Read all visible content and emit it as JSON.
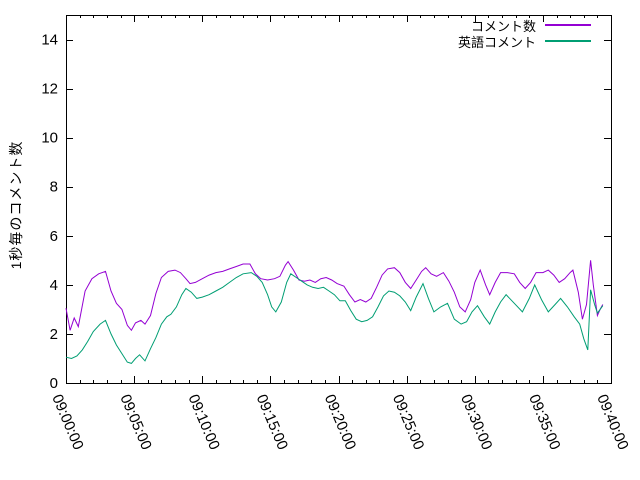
{
  "chart_data": {
    "type": "line",
    "title": "",
    "xlabel": "",
    "ylabel": "1秒毎のコメント数",
    "ylim": [
      0,
      15
    ],
    "yticks": [
      0,
      2,
      4,
      6,
      8,
      10,
      12,
      14
    ],
    "x_range_minutes": [
      0,
      40
    ],
    "x_major_tick_interval_minutes": 5,
    "x_minor_tick_interval_minutes": 1,
    "x_major_tick_labels": [
      "09:00:00",
      "09:05:00",
      "09:10:00",
      "09:15:00",
      "09:20:00",
      "09:25:00",
      "09:30:00",
      "09:35:00",
      "09:40:00"
    ],
    "grid": "off",
    "legend_position": "top-right-inside",
    "axis_color": "#000000",
    "background_color": "#ffffff",
    "series": [
      {
        "name": "コメント数",
        "color": "#9400D3",
        "points": [
          [
            0,
            3.05
          ],
          [
            0.3,
            2.15
          ],
          [
            0.6,
            2.65
          ],
          [
            0.9,
            2.3
          ],
          [
            1.4,
            3.75
          ],
          [
            1.9,
            4.25
          ],
          [
            2.4,
            4.45
          ],
          [
            2.9,
            4.55
          ],
          [
            3.3,
            3.75
          ],
          [
            3.7,
            3.25
          ],
          [
            4.1,
            3.0
          ],
          [
            4.5,
            2.35
          ],
          [
            4.8,
            2.15
          ],
          [
            5.1,
            2.45
          ],
          [
            5.5,
            2.55
          ],
          [
            5.8,
            2.4
          ],
          [
            6.2,
            2.75
          ],
          [
            6.6,
            3.65
          ],
          [
            7.0,
            4.3
          ],
          [
            7.5,
            4.55
          ],
          [
            8.0,
            4.6
          ],
          [
            8.4,
            4.5
          ],
          [
            8.8,
            4.25
          ],
          [
            9.1,
            4.05
          ],
          [
            9.5,
            4.1
          ],
          [
            10.0,
            4.25
          ],
          [
            10.5,
            4.4
          ],
          [
            11.0,
            4.5
          ],
          [
            11.5,
            4.55
          ],
          [
            12.0,
            4.65
          ],
          [
            12.5,
            4.75
          ],
          [
            13.0,
            4.85
          ],
          [
            13.5,
            4.85
          ],
          [
            13.9,
            4.45
          ],
          [
            14.3,
            4.25
          ],
          [
            14.8,
            4.2
          ],
          [
            15.3,
            4.25
          ],
          [
            15.7,
            4.35
          ],
          [
            16.1,
            4.8
          ],
          [
            16.3,
            4.95
          ],
          [
            16.7,
            4.6
          ],
          [
            17.1,
            4.2
          ],
          [
            17.5,
            4.15
          ],
          [
            17.9,
            4.2
          ],
          [
            18.3,
            4.1
          ],
          [
            18.7,
            4.25
          ],
          [
            19.1,
            4.3
          ],
          [
            19.5,
            4.2
          ],
          [
            19.9,
            4.05
          ],
          [
            20.4,
            3.95
          ],
          [
            20.8,
            3.6
          ],
          [
            21.2,
            3.3
          ],
          [
            21.6,
            3.4
          ],
          [
            22.0,
            3.3
          ],
          [
            22.4,
            3.45
          ],
          [
            22.8,
            3.9
          ],
          [
            23.2,
            4.4
          ],
          [
            23.6,
            4.65
          ],
          [
            24.1,
            4.7
          ],
          [
            24.5,
            4.5
          ],
          [
            24.9,
            4.1
          ],
          [
            25.3,
            3.85
          ],
          [
            25.7,
            4.2
          ],
          [
            26.1,
            4.55
          ],
          [
            26.4,
            4.7
          ],
          [
            26.8,
            4.45
          ],
          [
            27.2,
            4.35
          ],
          [
            27.7,
            4.5
          ],
          [
            28.1,
            4.15
          ],
          [
            28.5,
            3.7
          ],
          [
            28.9,
            3.1
          ],
          [
            29.3,
            2.9
          ],
          [
            29.7,
            3.4
          ],
          [
            30.0,
            4.1
          ],
          [
            30.4,
            4.6
          ],
          [
            30.8,
            4.0
          ],
          [
            31.1,
            3.6
          ],
          [
            31.5,
            4.1
          ],
          [
            31.9,
            4.5
          ],
          [
            32.4,
            4.5
          ],
          [
            32.9,
            4.45
          ],
          [
            33.3,
            4.1
          ],
          [
            33.7,
            3.85
          ],
          [
            34.1,
            4.1
          ],
          [
            34.5,
            4.5
          ],
          [
            35.0,
            4.5
          ],
          [
            35.4,
            4.6
          ],
          [
            35.8,
            4.4
          ],
          [
            36.2,
            4.1
          ],
          [
            36.6,
            4.25
          ],
          [
            37.0,
            4.5
          ],
          [
            37.2,
            4.6
          ],
          [
            37.6,
            3.7
          ],
          [
            37.9,
            2.6
          ],
          [
            38.2,
            3.2
          ],
          [
            38.5,
            5.0
          ],
          [
            38.7,
            4.0
          ],
          [
            39.0,
            2.75
          ],
          [
            39.2,
            3.0
          ],
          [
            39.4,
            3.2
          ]
        ]
      },
      {
        "name": "英語コメント",
        "color": "#009E73",
        "points": [
          [
            0,
            1.05
          ],
          [
            0.4,
            1.0
          ],
          [
            0.8,
            1.1
          ],
          [
            1.2,
            1.35
          ],
          [
            1.6,
            1.7
          ],
          [
            2.0,
            2.1
          ],
          [
            2.5,
            2.4
          ],
          [
            2.9,
            2.55
          ],
          [
            3.3,
            2.0
          ],
          [
            3.7,
            1.55
          ],
          [
            4.1,
            1.2
          ],
          [
            4.5,
            0.85
          ],
          [
            4.8,
            0.8
          ],
          [
            5.1,
            1.0
          ],
          [
            5.4,
            1.15
          ],
          [
            5.8,
            0.9
          ],
          [
            6.2,
            1.4
          ],
          [
            6.6,
            1.85
          ],
          [
            7.0,
            2.4
          ],
          [
            7.4,
            2.7
          ],
          [
            7.7,
            2.8
          ],
          [
            8.1,
            3.1
          ],
          [
            8.5,
            3.6
          ],
          [
            8.8,
            3.85
          ],
          [
            9.2,
            3.7
          ],
          [
            9.6,
            3.45
          ],
          [
            10.0,
            3.5
          ],
          [
            10.5,
            3.6
          ],
          [
            11.0,
            3.75
          ],
          [
            11.5,
            3.9
          ],
          [
            12.0,
            4.1
          ],
          [
            12.5,
            4.3
          ],
          [
            13.0,
            4.45
          ],
          [
            13.6,
            4.5
          ],
          [
            14.0,
            4.35
          ],
          [
            14.4,
            4.1
          ],
          [
            14.8,
            3.6
          ],
          [
            15.1,
            3.1
          ],
          [
            15.4,
            2.9
          ],
          [
            15.8,
            3.3
          ],
          [
            16.2,
            4.1
          ],
          [
            16.5,
            4.45
          ],
          [
            16.9,
            4.3
          ],
          [
            17.3,
            4.15
          ],
          [
            17.7,
            4.0
          ],
          [
            18.1,
            3.9
          ],
          [
            18.5,
            3.85
          ],
          [
            18.9,
            3.9
          ],
          [
            19.3,
            3.75
          ],
          [
            19.7,
            3.6
          ],
          [
            20.1,
            3.35
          ],
          [
            20.5,
            3.35
          ],
          [
            20.9,
            2.95
          ],
          [
            21.3,
            2.6
          ],
          [
            21.7,
            2.5
          ],
          [
            22.1,
            2.55
          ],
          [
            22.5,
            2.7
          ],
          [
            22.9,
            3.1
          ],
          [
            23.3,
            3.55
          ],
          [
            23.7,
            3.75
          ],
          [
            24.1,
            3.7
          ],
          [
            24.5,
            3.55
          ],
          [
            24.9,
            3.3
          ],
          [
            25.3,
            2.95
          ],
          [
            25.7,
            3.5
          ],
          [
            26.2,
            4.05
          ],
          [
            26.6,
            3.45
          ],
          [
            27.0,
            2.9
          ],
          [
            27.5,
            3.1
          ],
          [
            28.0,
            3.25
          ],
          [
            28.5,
            2.6
          ],
          [
            29.0,
            2.4
          ],
          [
            29.4,
            2.5
          ],
          [
            29.8,
            2.9
          ],
          [
            30.2,
            3.15
          ],
          [
            30.7,
            2.7
          ],
          [
            31.1,
            2.4
          ],
          [
            31.5,
            2.9
          ],
          [
            31.9,
            3.3
          ],
          [
            32.3,
            3.6
          ],
          [
            32.9,
            3.25
          ],
          [
            33.5,
            2.9
          ],
          [
            34.0,
            3.45
          ],
          [
            34.4,
            4.0
          ],
          [
            34.9,
            3.4
          ],
          [
            35.4,
            2.9
          ],
          [
            35.9,
            3.2
          ],
          [
            36.3,
            3.45
          ],
          [
            36.8,
            3.1
          ],
          [
            37.3,
            2.7
          ],
          [
            37.7,
            2.4
          ],
          [
            38.0,
            1.8
          ],
          [
            38.3,
            1.35
          ],
          [
            38.5,
            3.8
          ],
          [
            38.8,
            3.2
          ],
          [
            39.0,
            2.85
          ],
          [
            39.2,
            3.0
          ],
          [
            39.4,
            3.15
          ]
        ]
      }
    ]
  }
}
